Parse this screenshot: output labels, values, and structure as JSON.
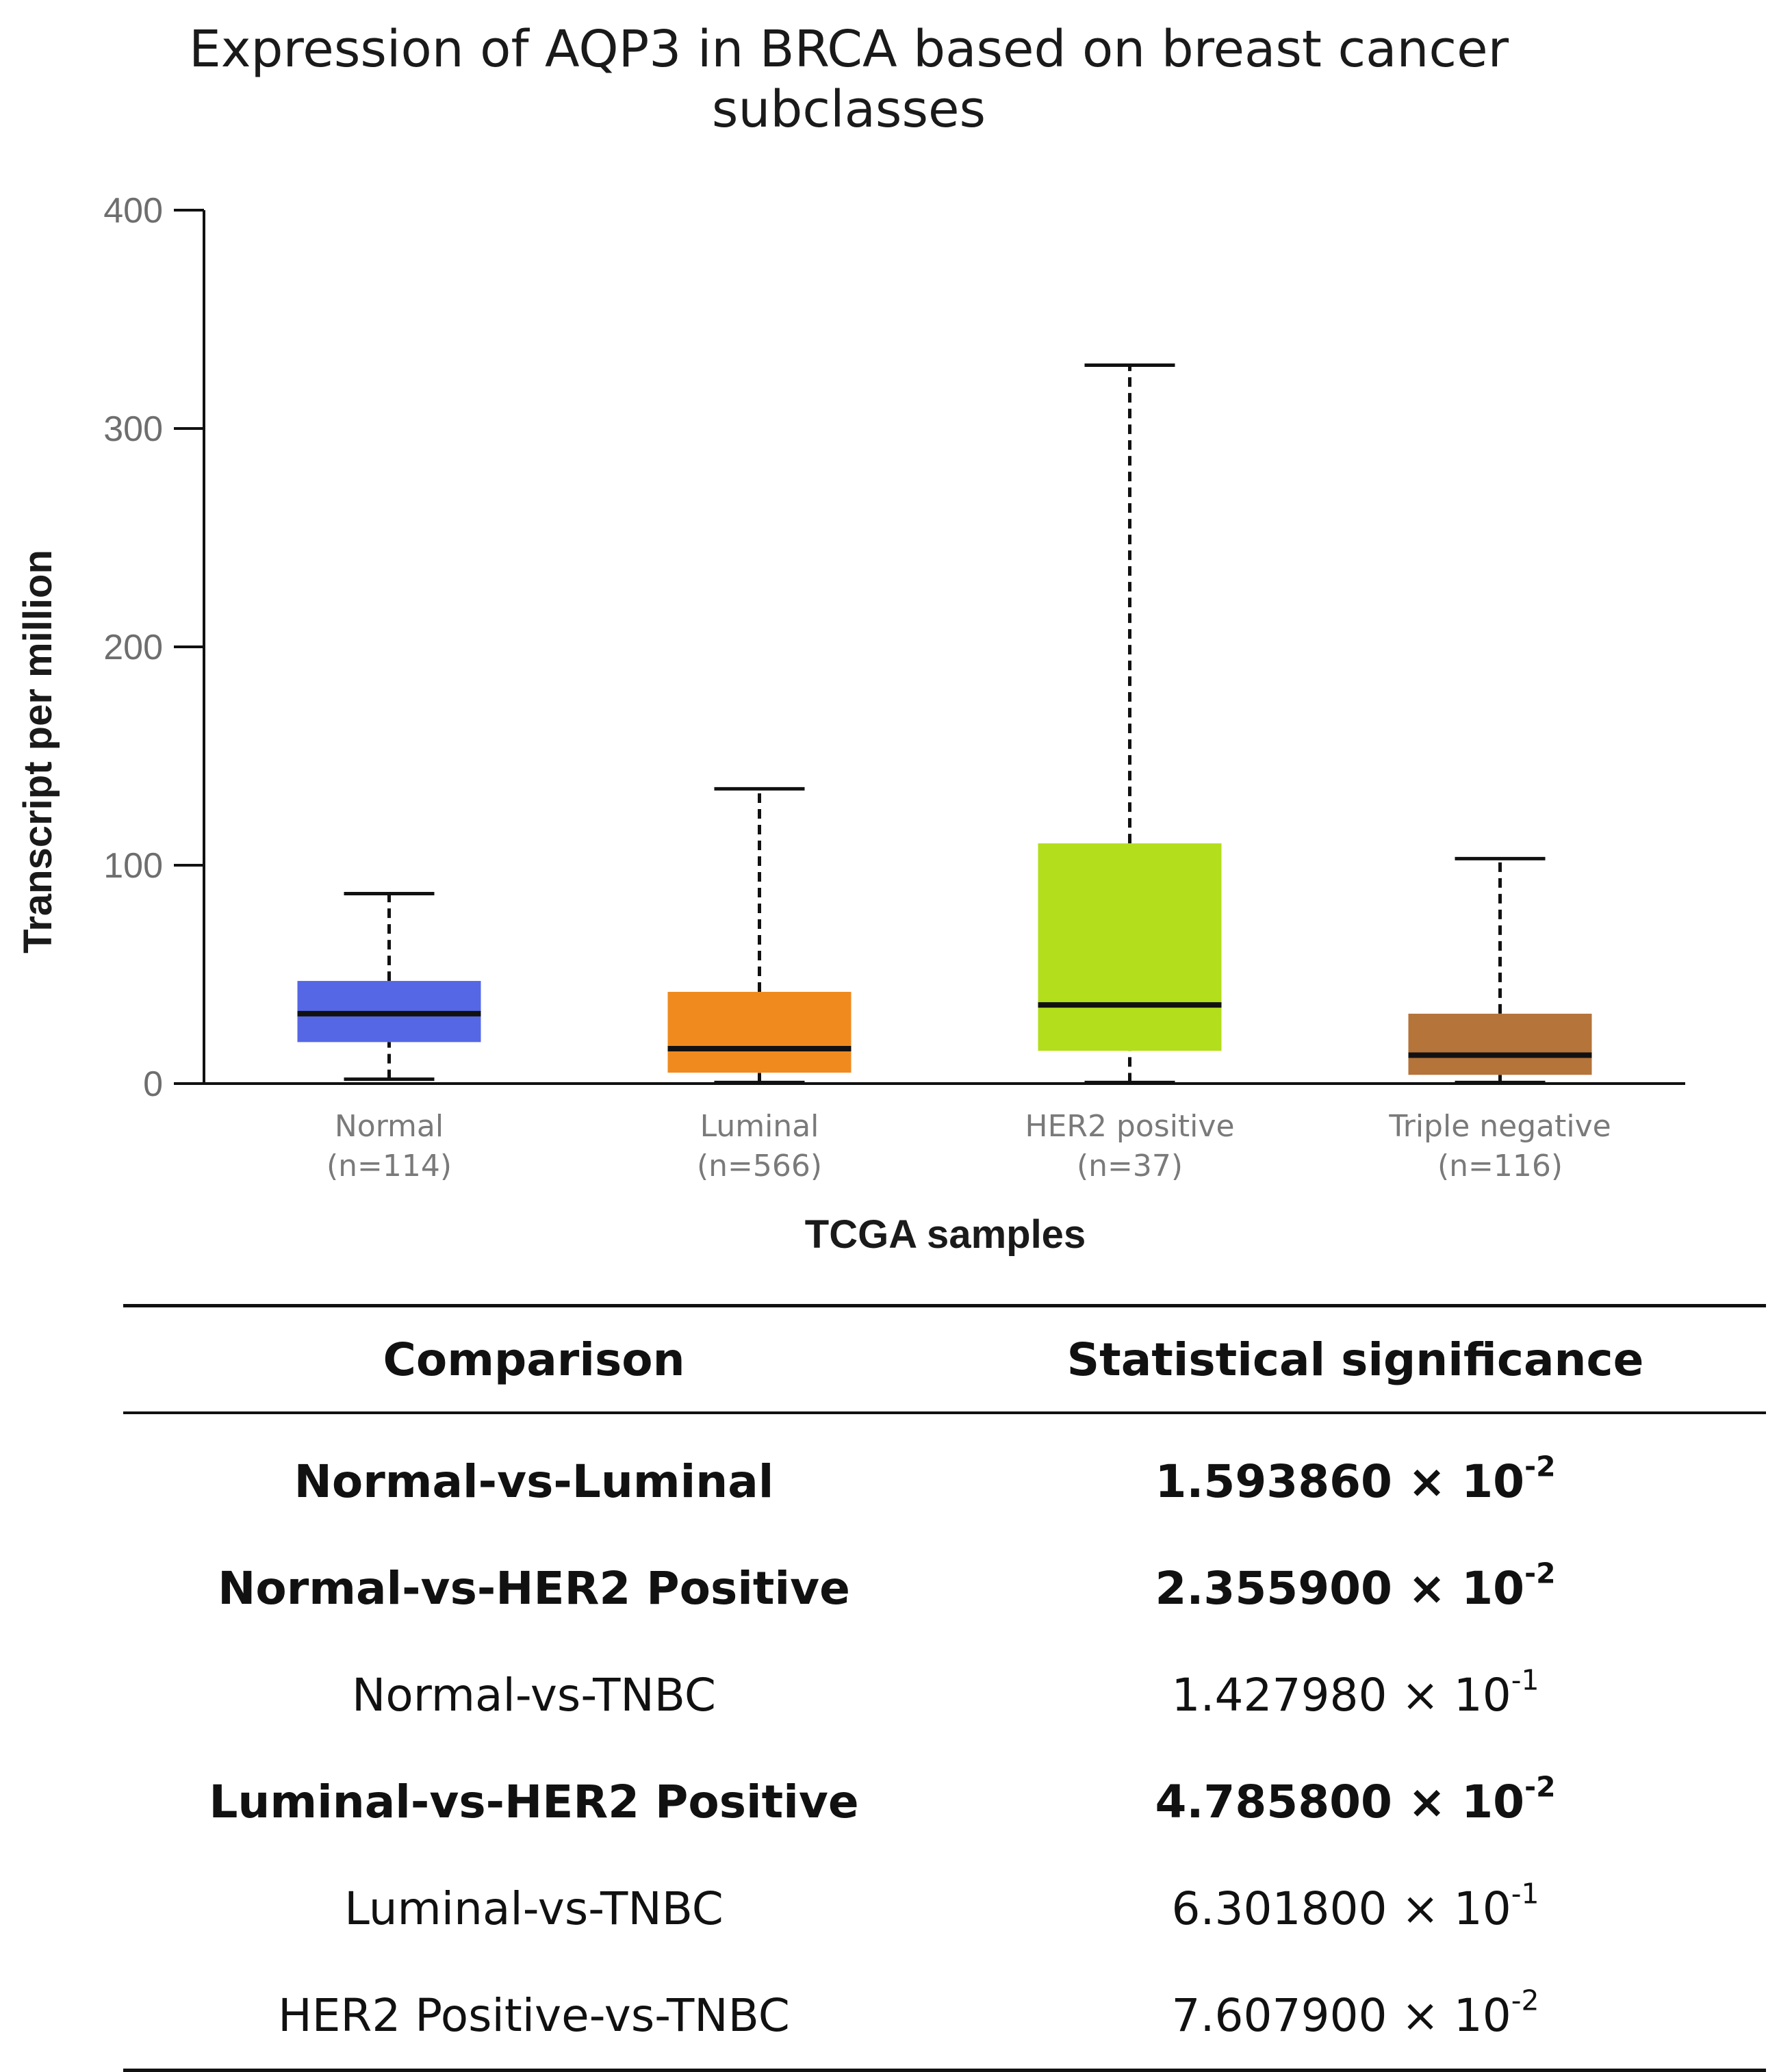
{
  "chart_data": {
    "type": "boxplot",
    "title_lines": [
      "Expression of AQP3 in BRCA based on breast cancer",
      "subclasses"
    ],
    "xlabel": "TCGA samples",
    "ylabel": "Transcript per million",
    "ylim": [
      0,
      400
    ],
    "yticks": [
      0,
      100,
      200,
      300,
      400
    ],
    "groups": [
      {
        "name": "Normal",
        "n_label": "(n=114)",
        "color": "#5567e5",
        "whisker_low": 2,
        "q1": 19,
        "median": 32,
        "q3": 47,
        "whisker_high": 87
      },
      {
        "name": "Luminal",
        "n_label": "(n=566)",
        "color": "#f08a1f",
        "whisker_low": 0.5,
        "q1": 5,
        "median": 16,
        "q3": 42,
        "whisker_high": 135
      },
      {
        "name": "HER2 positive",
        "n_label": "(n=37)",
        "color": "#b3de1b",
        "whisker_low": 0.5,
        "q1": 15,
        "median": 36,
        "q3": 110,
        "whisker_high": 329
      },
      {
        "name": "Triple negative",
        "n_label": "(n=116)",
        "color": "#b5743a",
        "whisker_low": 0.5,
        "q1": 4,
        "median": 13,
        "q3": 32,
        "whisker_high": 103
      }
    ]
  },
  "table": {
    "headers": [
      "Comparison",
      "Statistical  significance"
    ],
    "rows": [
      {
        "comparison": "Normal-vs-Luminal",
        "mantissa": "1.593860",
        "times": "×",
        "base": "10",
        "exponent": "-2",
        "bold": true
      },
      {
        "comparison": "Normal-vs-HER2  Positive",
        "mantissa": "2.355900",
        "times": "×",
        "base": "10",
        "exponent": "-2",
        "bold": true
      },
      {
        "comparison": "Normal-vs-TNBC",
        "mantissa": "1.427980",
        "times": "×",
        "base": "10",
        "exponent": "-1",
        "bold": false
      },
      {
        "comparison": "Luminal-vs-HER2  Positive",
        "mantissa": "4.785800",
        "times": "×",
        "base": "10",
        "exponent": "-2",
        "bold": true
      },
      {
        "comparison": "Luminal-vs-TNBC",
        "mantissa": "6.301800",
        "times": "×",
        "base": "10",
        "exponent": "-1",
        "bold": false
      },
      {
        "comparison": "HER2 Positive-vs-TNBC",
        "mantissa": "7.607900",
        "times": "×",
        "base": "10",
        "exponent": "-2",
        "bold": false
      }
    ]
  }
}
